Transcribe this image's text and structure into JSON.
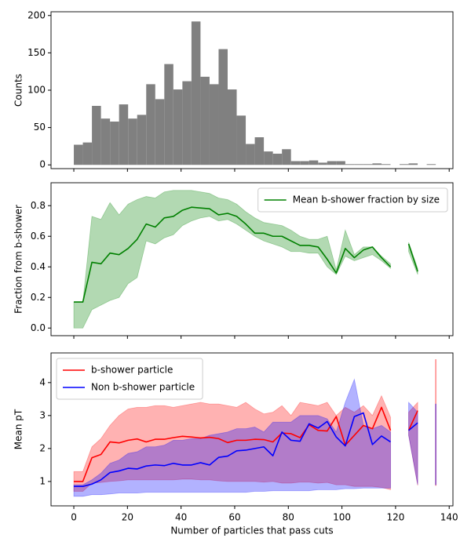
{
  "chart_data": [
    {
      "type": "histogram",
      "ylabel": "Counts",
      "color": "#808080",
      "bins": [
        0,
        3.375,
        6.75,
        10.125,
        13.5,
        16.875,
        20.25,
        23.625,
        27,
        30.375,
        33.75,
        37.125,
        40.5,
        43.875,
        47.25,
        50.625,
        54,
        57.375,
        60.75,
        64.125,
        67.5,
        70.875,
        74.25,
        77.625,
        81,
        84.375,
        87.75,
        91.125,
        94.5,
        97.875,
        101.25,
        104.625,
        108,
        111.375,
        114.75,
        118.125,
        121.5,
        124.875,
        128.25,
        131.625,
        135
      ],
      "values": [
        27,
        30,
        79,
        62,
        58,
        81,
        62,
        67,
        108,
        88,
        135,
        101,
        112,
        192,
        118,
        108,
        155,
        101,
        66,
        28,
        37,
        18,
        15,
        21,
        5,
        5,
        6,
        3,
        5,
        5,
        1,
        1,
        1,
        2,
        1,
        0,
        1,
        2,
        0,
        1
      ],
      "xlim": [
        -8.5,
        141.4
      ],
      "xticks": [
        0,
        20,
        40,
        60,
        80,
        100,
        120,
        140
      ],
      "ylim": [
        -5,
        205
      ],
      "yticks": [
        0,
        50,
        100,
        150,
        200
      ]
    },
    {
      "type": "line",
      "ylabel": "Fraction from b-shower",
      "legend": "upper right",
      "x": [
        0,
        3.375,
        6.75,
        10.125,
        13.5,
        16.875,
        20.25,
        23.625,
        27,
        30.375,
        33.75,
        37.125,
        40.5,
        43.875,
        47.25,
        50.625,
        54,
        57.375,
        60.75,
        64.125,
        67.5,
        70.875,
        74.25,
        77.625,
        81,
        84.375,
        87.75,
        91.125,
        94.5,
        97.875,
        101.25,
        104.625,
        108,
        111.375,
        114.75,
        118.125,
        121.5,
        124.875,
        128.25,
        131.625,
        135
      ],
      "series": [
        {
          "name": "Mean b-shower fraction by size",
          "color": "#008000",
          "values": [
            0.17,
            0.17,
            0.43,
            0.42,
            0.49,
            0.48,
            0.52,
            0.58,
            0.68,
            0.66,
            0.72,
            0.73,
            0.77,
            0.79,
            0.785,
            0.78,
            0.74,
            0.75,
            0.73,
            0.68,
            0.62,
            0.62,
            0.6,
            0.6,
            0.57,
            0.54,
            0.54,
            0.53,
            0.45,
            0.36,
            0.52,
            0.46,
            0.51,
            0.53,
            0.46,
            0.4,
            null,
            0.55,
            0.37,
            null,
            null
          ],
          "lower": [
            0,
            0,
            0.12,
            0.15,
            0.18,
            0.2,
            0.29,
            0.33,
            0.57,
            0.55,
            0.59,
            0.61,
            0.67,
            0.7,
            0.72,
            0.73,
            0.7,
            0.71,
            0.68,
            0.64,
            0.6,
            0.57,
            0.55,
            0.53,
            0.5,
            0.5,
            0.49,
            0.49,
            0.4,
            0.35,
            0.47,
            0.44,
            0.46,
            0.48,
            0.44,
            0.39,
            null,
            0.5,
            0.35,
            null,
            null
          ],
          "upper": [
            0.17,
            0.17,
            0.73,
            0.71,
            0.82,
            0.74,
            0.81,
            0.84,
            0.86,
            0.85,
            0.89,
            0.9,
            0.9,
            0.9,
            0.89,
            0.88,
            0.85,
            0.84,
            0.81,
            0.76,
            0.72,
            0.69,
            0.68,
            0.67,
            0.64,
            0.6,
            0.58,
            0.58,
            0.6,
            0.38,
            0.64,
            0.48,
            0.53,
            0.53,
            0.47,
            0.42,
            null,
            0.56,
            0.39,
            null,
            null
          ]
        }
      ],
      "xlim": [
        -8.5,
        141.4
      ],
      "xticks": [
        0,
        20,
        40,
        60,
        80,
        100,
        120,
        140
      ],
      "ylim": [
        -0.05,
        0.95
      ],
      "yticks": [
        {
          "value": 0,
          "label": "0.0"
        },
        0.2,
        0.4,
        0.6,
        0.8
      ]
    },
    {
      "type": "line",
      "xlabel": "Number of particles that pass cuts",
      "ylabel": "Mean pT",
      "legend": "upper left",
      "x": [
        0,
        3.375,
        6.75,
        10.125,
        13.5,
        16.875,
        20.25,
        23.625,
        27,
        30.375,
        33.75,
        37.125,
        40.5,
        43.875,
        47.25,
        50.625,
        54,
        57.375,
        60.75,
        64.125,
        67.5,
        70.875,
        74.25,
        77.625,
        81,
        84.375,
        87.75,
        91.125,
        94.5,
        97.875,
        101.25,
        104.625,
        108,
        111.375,
        114.75,
        118.125,
        121.5,
        124.875,
        128.25,
        131.625,
        135
      ],
      "series": [
        {
          "name": "b-shower particle",
          "color": "#ff0000",
          "values": [
            1.0,
            1.0,
            1.72,
            1.82,
            2.2,
            2.17,
            2.25,
            2.29,
            2.2,
            2.28,
            2.28,
            2.33,
            2.37,
            2.35,
            2.32,
            2.34,
            2.3,
            2.18,
            2.25,
            2.25,
            2.28,
            2.27,
            2.2,
            2.47,
            2.45,
            2.33,
            2.72,
            2.55,
            2.53,
            2.97,
            2.1,
            2.4,
            2.7,
            2.6,
            3.25,
            2.55,
            null,
            2.55,
            3.15,
            null,
            null
          ],
          "lower": [
            0.7,
            0.7,
            0.95,
            0.97,
            1.0,
            1.02,
            1.05,
            1.05,
            1.05,
            1.05,
            1.05,
            1.05,
            1.07,
            1.07,
            1.05,
            1.05,
            1.02,
            1.0,
            1.0,
            1.0,
            1.0,
            0.98,
            1.0,
            0.95,
            0.95,
            0.98,
            0.98,
            0.95,
            0.97,
            0.9,
            0.9,
            0.85,
            0.85,
            0.85,
            0.82,
            0.75,
            null,
            2.4,
            0.88,
            null,
            0.88
          ],
          "upper": [
            1.3,
            1.3,
            2.05,
            2.3,
            2.7,
            3.0,
            3.2,
            3.25,
            3.25,
            3.3,
            3.3,
            3.25,
            3.3,
            3.35,
            3.4,
            3.35,
            3.35,
            3.3,
            3.25,
            3.4,
            3.2,
            3.05,
            3.1,
            3.3,
            3.0,
            3.4,
            3.35,
            3.3,
            3.4,
            3.0,
            3.25,
            3.1,
            3.3,
            3.0,
            3.6,
            2.95,
            null,
            3.1,
            3.4,
            null,
            4.7
          ]
        },
        {
          "name": "Non b-shower particle",
          "color": "#0000ff",
          "values": [
            0.85,
            0.85,
            0.92,
            1.05,
            1.27,
            1.32,
            1.4,
            1.38,
            1.47,
            1.5,
            1.48,
            1.55,
            1.5,
            1.5,
            1.57,
            1.5,
            1.73,
            1.77,
            1.93,
            1.95,
            2.0,
            2.05,
            1.78,
            2.5,
            2.25,
            2.22,
            2.75,
            2.62,
            2.82,
            2.35,
            2.08,
            2.97,
            3.08,
            2.12,
            2.38,
            2.2,
            null,
            2.55,
            2.78,
            null,
            null
          ],
          "lower": [
            0.55,
            0.55,
            0.6,
            0.6,
            0.62,
            0.65,
            0.65,
            0.65,
            0.67,
            0.67,
            0.67,
            0.67,
            0.67,
            0.67,
            0.67,
            0.67,
            0.67,
            0.67,
            0.67,
            0.67,
            0.7,
            0.7,
            0.72,
            0.72,
            0.72,
            0.72,
            0.72,
            0.75,
            0.75,
            0.75,
            0.78,
            0.78,
            0.8,
            0.8,
            0.8,
            0.8,
            null,
            2.4,
            0.9,
            null,
            0.9
          ],
          "upper": [
            0.9,
            0.9,
            1.05,
            1.25,
            1.55,
            1.65,
            1.85,
            1.9,
            2.05,
            2.05,
            2.1,
            2.25,
            2.25,
            2.3,
            2.3,
            2.4,
            2.45,
            2.5,
            2.6,
            2.6,
            2.65,
            2.5,
            2.8,
            2.8,
            2.8,
            3.0,
            3.0,
            3.0,
            2.9,
            2.5,
            3.4,
            4.1,
            2.7,
            2.6,
            2.7,
            2.5,
            null,
            3.4,
            3.1,
            null,
            3.35
          ]
        }
      ],
      "xlim": [
        -8.5,
        141.4
      ],
      "xticks": [
        0,
        20,
        40,
        60,
        80,
        100,
        120,
        140
      ],
      "ylim": [
        0.26,
        4.9
      ],
      "yticks": [
        1,
        2,
        3,
        4
      ]
    }
  ]
}
